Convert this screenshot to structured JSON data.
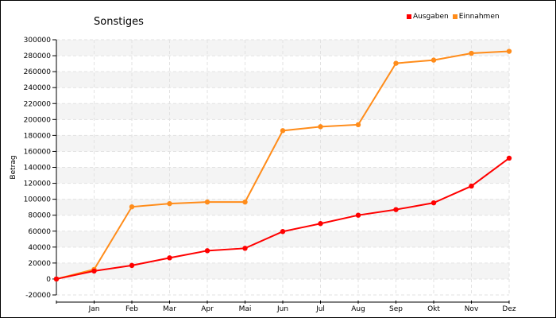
{
  "chart_data": {
    "type": "line",
    "title": "Sonstiges",
    "ylabel": "Betrag",
    "xlabel": "",
    "x": [
      "",
      "Jan",
      "Feb",
      "Mar",
      "Apr",
      "Mai",
      "Jun",
      "Jul",
      "Aug",
      "Sep",
      "Okt",
      "Nov",
      "Dez"
    ],
    "ylim": [
      -20000,
      300000
    ],
    "yticks": [
      -20000,
      0,
      20000,
      40000,
      60000,
      80000,
      100000,
      120000,
      140000,
      160000,
      180000,
      200000,
      220000,
      240000,
      260000,
      280000,
      300000
    ],
    "grid": true,
    "legend_position": "top-right",
    "series": [
      {
        "name": "Ausgaben",
        "color": "#ff0000",
        "values": [
          0,
          10000,
          17000,
          26500,
          35500,
          38500,
          59500,
          69500,
          80000,
          87000,
          95500,
          116500,
          151500
        ]
      },
      {
        "name": "Einnahmen",
        "color": "#ff8c1a",
        "values": [
          0,
          12000,
          90500,
          94500,
          96500,
          96500,
          186000,
          191000,
          193500,
          270500,
          274500,
          283000,
          285500
        ]
      }
    ]
  }
}
